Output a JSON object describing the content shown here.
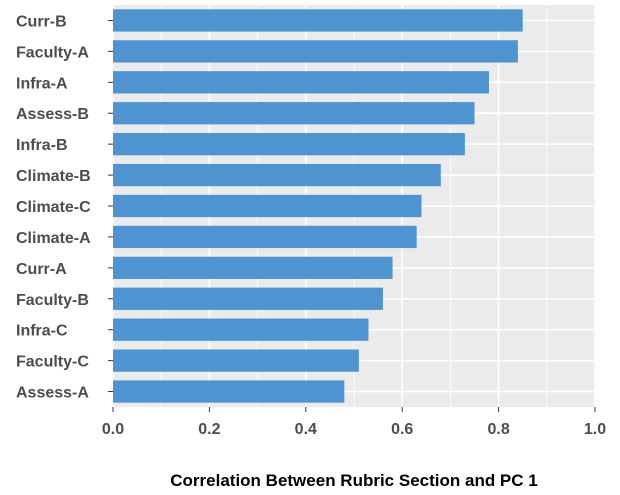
{
  "chart_data": {
    "type": "bar",
    "orientation": "horizontal",
    "categories": [
      "Curr-B",
      "Faculty-A",
      "Infra-A",
      "Assess-B",
      "Infra-B",
      "Climate-B",
      "Climate-C",
      "Climate-A",
      "Curr-A",
      "Faculty-B",
      "Infra-C",
      "Faculty-C",
      "Assess-A"
    ],
    "values": [
      0.85,
      0.84,
      0.78,
      0.75,
      0.73,
      0.68,
      0.64,
      0.63,
      0.58,
      0.56,
      0.53,
      0.51,
      0.48
    ],
    "xlabel": "Correlation Between Rubric Section and PC 1",
    "ylabel": "",
    "xlim": [
      0,
      1.0
    ],
    "xticks": [
      "0.0",
      "0.2",
      "0.4",
      "0.6",
      "0.8",
      "1.0"
    ],
    "grid": true,
    "colors": {
      "bar": "#4d94d1",
      "panel": "#ebebeb",
      "grid": "#ffffff"
    }
  }
}
